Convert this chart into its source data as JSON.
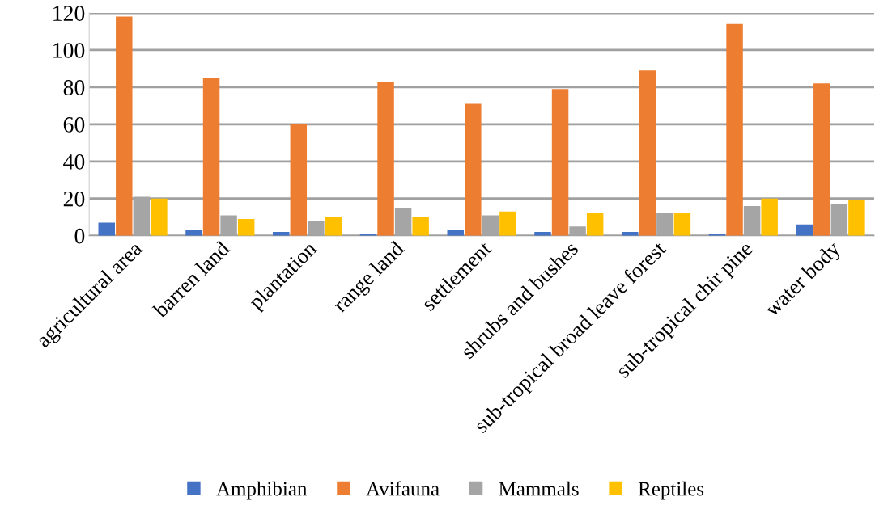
{
  "chart_data": {
    "type": "bar",
    "categories": [
      "agricultural area",
      "barren land",
      "plantation",
      "range land",
      "settlement",
      "shrubs and bushes",
      "sub-tropical broad leave forest",
      "sub-tropical chir pine",
      "water body"
    ],
    "series": [
      {
        "name": "Amphibian",
        "color": "#4472c4",
        "values": [
          7,
          3,
          2,
          1,
          3,
          2,
          2,
          1,
          6
        ]
      },
      {
        "name": "Avifauna",
        "color": "#ed7d31",
        "values": [
          118,
          85,
          60,
          83,
          71,
          79,
          89,
          114,
          82
        ]
      },
      {
        "name": "Mammals",
        "color": "#a5a5a5",
        "values": [
          21,
          11,
          8,
          15,
          11,
          5,
          12,
          16,
          17
        ]
      },
      {
        "name": "Reptiles",
        "color": "#ffc000",
        "values": [
          20,
          9,
          10,
          10,
          13,
          12,
          12,
          20,
          19
        ]
      }
    ],
    "ylim": [
      0,
      120
    ],
    "yticks": [
      0,
      20,
      40,
      60,
      80,
      100,
      120
    ],
    "grid": "y",
    "legend": "bottom"
  }
}
